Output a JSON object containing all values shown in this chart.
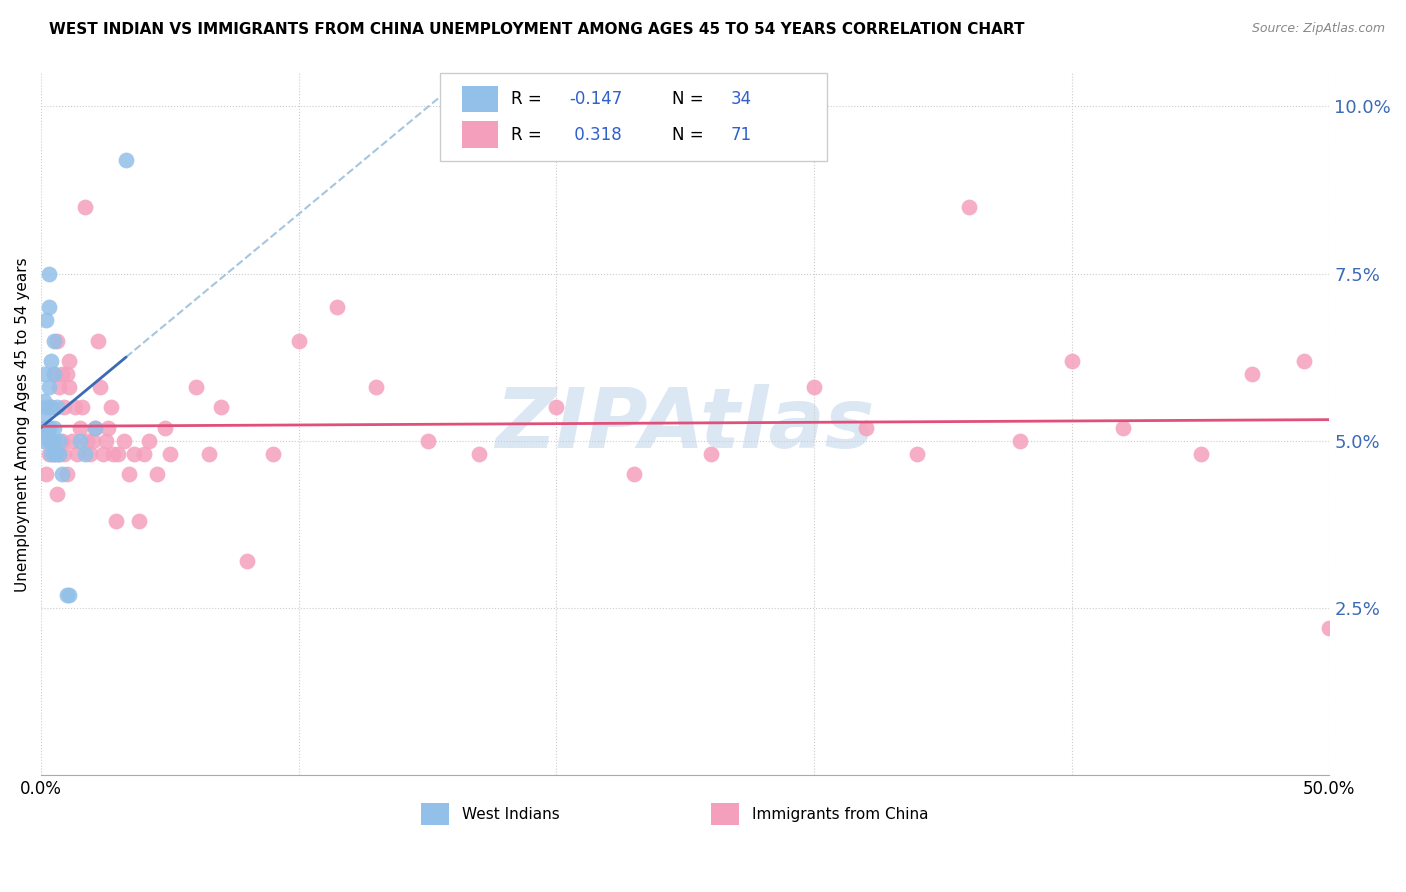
{
  "title": "WEST INDIAN VS IMMIGRANTS FROM CHINA UNEMPLOYMENT AMONG AGES 45 TO 54 YEARS CORRELATION CHART",
  "source": "Source: ZipAtlas.com",
  "ylabel": "Unemployment Among Ages 45 to 54 years",
  "legend_label1": "West Indians",
  "legend_label2": "Immigrants from China",
  "R1": -0.147,
  "N1": 34,
  "R2": 0.318,
  "N2": 71,
  "color_blue": "#92C0E8",
  "color_pink": "#F4A0BC",
  "color_blue_line": "#3B6BB5",
  "color_pink_line": "#E0507A",
  "color_blue_dashed": "#90B8D8",
  "watermark_text": "ZIPAtlas",
  "watermark_color": "#C5D8EE",
  "west_indian_x": [
    0.001,
    0.001,
    0.001,
    0.001,
    0.001,
    0.002,
    0.002,
    0.002,
    0.002,
    0.003,
    0.003,
    0.003,
    0.003,
    0.003,
    0.004,
    0.004,
    0.004,
    0.004,
    0.005,
    0.005,
    0.005,
    0.005,
    0.005,
    0.006,
    0.006,
    0.007,
    0.007,
    0.008,
    0.01,
    0.011,
    0.015,
    0.017,
    0.021,
    0.033
  ],
  "west_indian_y": [
    0.05,
    0.052,
    0.054,
    0.056,
    0.06,
    0.051,
    0.052,
    0.055,
    0.068,
    0.05,
    0.052,
    0.058,
    0.07,
    0.075,
    0.048,
    0.05,
    0.055,
    0.062,
    0.048,
    0.05,
    0.052,
    0.06,
    0.065,
    0.048,
    0.055,
    0.048,
    0.05,
    0.045,
    0.027,
    0.027,
    0.05,
    0.048,
    0.052,
    0.092
  ],
  "china_x": [
    0.002,
    0.003,
    0.003,
    0.004,
    0.004,
    0.005,
    0.005,
    0.006,
    0.006,
    0.007,
    0.007,
    0.008,
    0.008,
    0.009,
    0.009,
    0.01,
    0.01,
    0.011,
    0.011,
    0.012,
    0.013,
    0.014,
    0.015,
    0.016,
    0.017,
    0.018,
    0.019,
    0.02,
    0.021,
    0.022,
    0.023,
    0.024,
    0.025,
    0.026,
    0.027,
    0.028,
    0.029,
    0.03,
    0.032,
    0.034,
    0.036,
    0.038,
    0.04,
    0.042,
    0.045,
    0.048,
    0.05,
    0.06,
    0.065,
    0.07,
    0.08,
    0.09,
    0.1,
    0.115,
    0.13,
    0.15,
    0.17,
    0.2,
    0.23,
    0.26,
    0.3,
    0.32,
    0.34,
    0.36,
    0.38,
    0.4,
    0.42,
    0.45,
    0.47,
    0.49,
    0.5
  ],
  "china_y": [
    0.045,
    0.048,
    0.052,
    0.05,
    0.055,
    0.048,
    0.06,
    0.042,
    0.065,
    0.048,
    0.058,
    0.05,
    0.06,
    0.048,
    0.055,
    0.045,
    0.06,
    0.058,
    0.062,
    0.05,
    0.055,
    0.048,
    0.052,
    0.055,
    0.085,
    0.05,
    0.048,
    0.05,
    0.052,
    0.065,
    0.058,
    0.048,
    0.05,
    0.052,
    0.055,
    0.048,
    0.038,
    0.048,
    0.05,
    0.045,
    0.048,
    0.038,
    0.048,
    0.05,
    0.045,
    0.052,
    0.048,
    0.058,
    0.048,
    0.055,
    0.032,
    0.048,
    0.065,
    0.07,
    0.058,
    0.05,
    0.048,
    0.055,
    0.045,
    0.048,
    0.058,
    0.052,
    0.048,
    0.085,
    0.05,
    0.062,
    0.052,
    0.048,
    0.06,
    0.062,
    0.022
  ],
  "xlim": [
    0.0,
    0.5
  ],
  "ylim": [
    0.0,
    0.105
  ],
  "yticks": [
    0.0,
    0.025,
    0.05,
    0.075,
    0.1
  ],
  "ytick_labels": [
    "",
    "2.5%",
    "5.0%",
    "7.5%",
    "10.0%"
  ]
}
